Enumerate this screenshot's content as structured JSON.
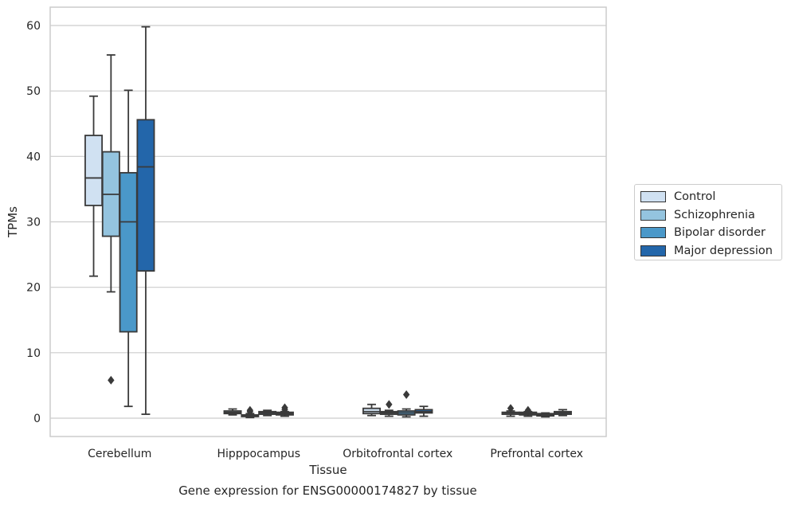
{
  "caption": "Gene expression for ENSG00000174827 by tissue",
  "chart_data": {
    "type": "box",
    "xlabel": "Tissue",
    "ylabel": "TPMs",
    "ylim": [
      -2.8,
      62.8
    ],
    "yticks": [
      0,
      10,
      20,
      30,
      40,
      50,
      60
    ],
    "grid": "horizontal",
    "legend_position": "right",
    "categories": [
      "Cerebellum",
      "Hipppocampus",
      "Orbitofrontal cortex",
      "Prefrontal cortex"
    ],
    "series": [
      {
        "name": "Control",
        "color": "#d0e1f2",
        "boxes": [
          {
            "whisker_low": 21.7,
            "q1": 32.5,
            "median": 36.7,
            "q3": 43.2,
            "whisker_high": 49.2,
            "outliers": []
          },
          {
            "whisker_low": 0.5,
            "q1": 0.7,
            "median": 0.9,
            "q3": 1.1,
            "whisker_high": 1.4,
            "outliers": []
          },
          {
            "whisker_low": 0.4,
            "q1": 0.7,
            "median": 1.0,
            "q3": 1.5,
            "whisker_high": 2.1,
            "outliers": []
          },
          {
            "whisker_low": 0.3,
            "q1": 0.6,
            "median": 0.8,
            "q3": 0.9,
            "whisker_high": 1.1,
            "outliers": [
              1.5
            ]
          }
        ]
      },
      {
        "name": "Schizophrenia",
        "color": "#94c4df",
        "boxes": [
          {
            "whisker_low": 19.3,
            "q1": 27.8,
            "median": 34.2,
            "q3": 40.7,
            "whisker_high": 55.5,
            "outliers": [
              5.8
            ]
          },
          {
            "whisker_low": 0.1,
            "q1": 0.25,
            "median": 0.35,
            "q3": 0.5,
            "whisker_high": 0.7,
            "outliers": [
              1.2,
              1.0
            ]
          },
          {
            "whisker_low": 0.3,
            "q1": 0.6,
            "median": 0.8,
            "q3": 1.0,
            "whisker_high": 1.2,
            "outliers": [
              2.1
            ]
          },
          {
            "whisker_low": 0.3,
            "q1": 0.5,
            "median": 0.7,
            "q3": 0.9,
            "whisker_high": 1.0,
            "outliers": [
              1.2
            ]
          }
        ]
      },
      {
        "name": "Bipolar disorder",
        "color": "#4a98c9",
        "boxes": [
          {
            "whisker_low": 1.8,
            "q1": 13.2,
            "median": 30.0,
            "q3": 37.5,
            "whisker_high": 50.1,
            "outliers": []
          },
          {
            "whisker_low": 0.4,
            "q1": 0.6,
            "median": 0.8,
            "q3": 1.0,
            "whisker_high": 1.2,
            "outliers": []
          },
          {
            "whisker_low": 0.2,
            "q1": 0.5,
            "median": 0.8,
            "q3": 1.1,
            "whisker_high": 1.4,
            "outliers": [
              3.6
            ]
          },
          {
            "whisker_low": 0.2,
            "q1": 0.35,
            "median": 0.5,
            "q3": 0.7,
            "whisker_high": 0.8,
            "outliers": []
          }
        ]
      },
      {
        "name": "Major depression",
        "color": "#2366aa",
        "boxes": [
          {
            "whisker_low": 0.6,
            "q1": 22.5,
            "median": 38.4,
            "q3": 45.6,
            "whisker_high": 59.8,
            "outliers": []
          },
          {
            "whisker_low": 0.3,
            "q1": 0.5,
            "median": 0.7,
            "q3": 0.9,
            "whisker_high": 1.0,
            "outliers": [
              1.6,
              1.3
            ]
          },
          {
            "whisker_low": 0.3,
            "q1": 0.8,
            "median": 1.0,
            "q3": 1.3,
            "whisker_high": 1.8,
            "outliers": []
          },
          {
            "whisker_low": 0.4,
            "q1": 0.6,
            "median": 0.8,
            "q3": 1.0,
            "whisker_high": 1.3,
            "outliers": []
          }
        ]
      }
    ]
  }
}
